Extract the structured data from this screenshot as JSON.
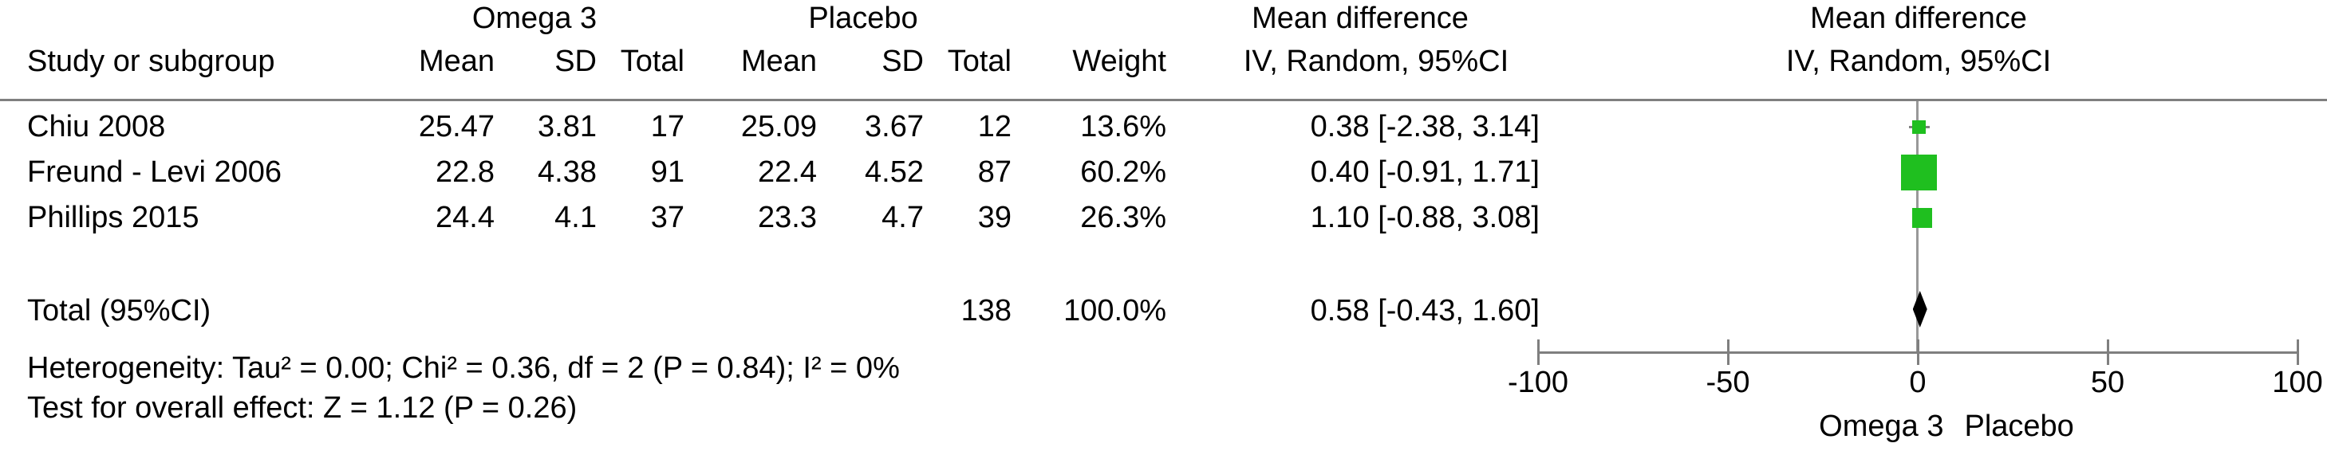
{
  "table": {
    "group1_header": "Omega 3",
    "group2_header": "Placebo",
    "effect_col_header_top": "Mean difference",
    "effect_col_header_bottom": "IV, Random, 95%CI",
    "plot_header_top": "Mean difference",
    "plot_header_bottom": "IV, Random, 95%CI",
    "columns": {
      "study": "Study or subgroup",
      "mean1": "Mean",
      "sd1": "SD",
      "total1": "Total",
      "mean2": "Mean",
      "sd2": "SD",
      "total2": "Total",
      "weight": "Weight"
    },
    "rows": [
      {
        "study": "Chiu 2008",
        "mean1": "25.47",
        "sd1": "3.81",
        "total1": "17",
        "mean2": "25.09",
        "sd2": "3.67",
        "total2": "12",
        "weight": "13.6%",
        "ci": "0.38 [-2.38, 3.14]"
      },
      {
        "study": "Freund - Levi 2006",
        "mean1": "22.8",
        "sd1": "4.38",
        "total1": "91",
        "mean2": "22.4",
        "sd2": "4.52",
        "total2": "87",
        "weight": "60.2%",
        "ci": "0.40 [-0.91, 1.71]"
      },
      {
        "study": "Phillips 2015",
        "mean1": "24.4",
        "sd1": "4.1",
        "total1": "37",
        "mean2": "23.3",
        "sd2": "4.7",
        "total2": "39",
        "weight": "26.3%",
        "ci": "1.10 [-0.88, 3.08]"
      }
    ],
    "total_row": {
      "label": "Total (95%CI)",
      "total": "138",
      "weight": "100.0%",
      "ci": "0.58 [-0.43, 1.60]"
    },
    "heterogeneity": "Heterogeneity: Tau² = 0.00; Chi² = 0.36, df = 2 (P = 0.84); I² = 0%",
    "overall_effect": "Test for overall effect: Z = 1.12 (P = 0.26)"
  },
  "chart_data": {
    "type": "scatter",
    "subtype": "forest-plot",
    "title": "Mean difference, IV, Random, 95%CI",
    "studies": [
      {
        "name": "Chiu 2008",
        "estimate": 0.38,
        "ci_low": -2.38,
        "ci_high": 3.14,
        "weight_pct": 13.6
      },
      {
        "name": "Freund - Levi 2006",
        "estimate": 0.4,
        "ci_low": -0.91,
        "ci_high": 1.71,
        "weight_pct": 60.2
      },
      {
        "name": "Phillips 2015",
        "estimate": 1.1,
        "ci_low": -0.88,
        "ci_high": 3.08,
        "weight_pct": 26.3
      }
    ],
    "total": {
      "label": "Total (95%CI)",
      "estimate": 0.58,
      "ci_low": -0.43,
      "ci_high": 1.6,
      "weight_pct": 100.0
    },
    "xticks": [
      -100,
      -50,
      0,
      50,
      100
    ],
    "xlim": [
      -100,
      100
    ],
    "favours_left": "Omega 3",
    "favours_right": "Placebo",
    "marker_color": "#1fbf1f",
    "diamond_color": "#000000",
    "axis_color": "#7f7f7f",
    "grid": false,
    "legend": false
  }
}
